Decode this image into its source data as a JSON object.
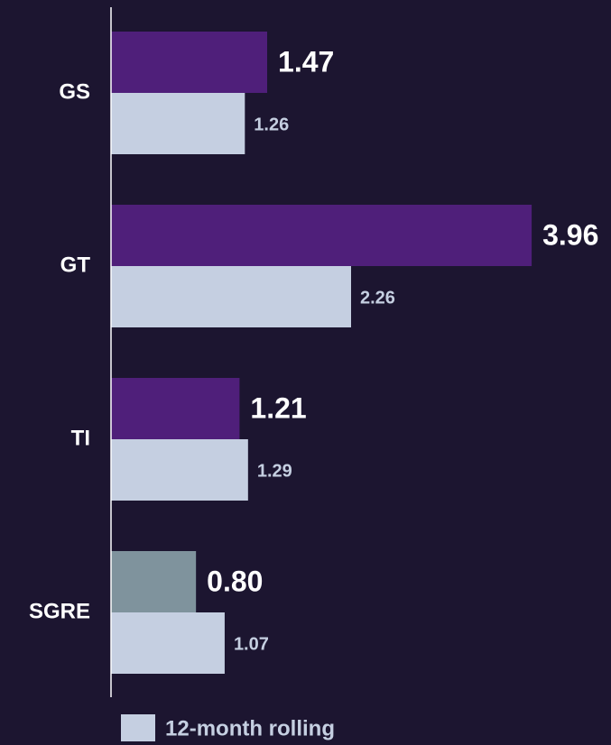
{
  "chart_data": {
    "type": "bar",
    "orientation": "horizontal",
    "categories": [
      "GS",
      "GT",
      "TI",
      "SGRE"
    ],
    "series": [
      {
        "colors": [
          "#4f1f7a",
          "#4f1f7a",
          "#4f1f7a",
          "#7f939d"
        ],
        "values": [
          1.47,
          3.96,
          1.21,
          0.8
        ],
        "value_labels": [
          "1.47",
          "3.96",
          "1.21",
          "0.80"
        ]
      },
      {
        "name": "12-month rolling",
        "color": "#c5cfe1",
        "values": [
          1.26,
          2.26,
          1.29,
          1.07
        ]
      }
    ],
    "legend": "bottom-left"
  }
}
